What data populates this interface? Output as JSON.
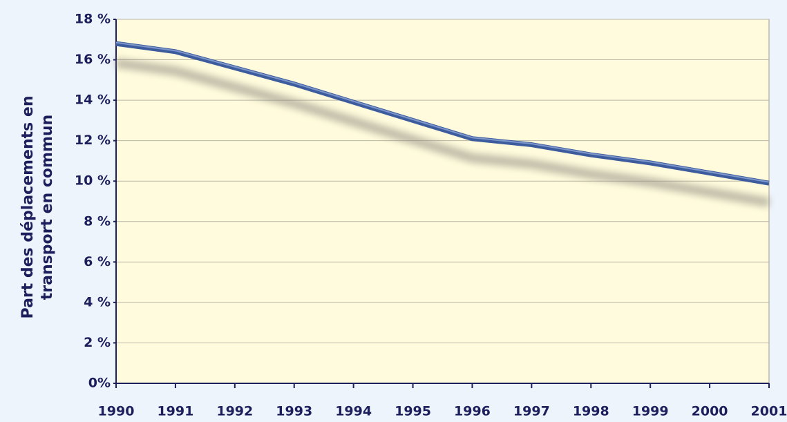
{
  "chart_data": {
    "type": "line",
    "ylabel": [
      "Part des déplacements en",
      "transport en commun"
    ],
    "x": [
      1990,
      1991,
      1992,
      1993,
      1994,
      1995,
      1996,
      1997,
      1998,
      1999,
      2000,
      2001
    ],
    "series": [
      {
        "name": "Part des déplacements en transport en commun",
        "color": "#3d5c9e",
        "values": [
          16.8,
          16.4,
          15.6,
          14.8,
          13.9,
          13.0,
          12.1,
          11.8,
          11.3,
          10.9,
          10.4,
          9.9
        ]
      }
    ],
    "xlim": [
      1990,
      2001
    ],
    "xticks": [
      1990,
      1991,
      1992,
      1993,
      1994,
      1995,
      1996,
      1997,
      1998,
      1999,
      2000,
      2001
    ],
    "ylim": [
      0,
      18
    ],
    "yticks": [
      {
        "value": 0,
        "label": "0%"
      },
      {
        "value": 2,
        "label": "2 %"
      },
      {
        "value": 4,
        "label": "4 %"
      },
      {
        "value": 6,
        "label": "6 %"
      },
      {
        "value": 8,
        "label": "8 %"
      },
      {
        "value": 10,
        "label": "10 %"
      },
      {
        "value": 12,
        "label": "12 %"
      },
      {
        "value": 14,
        "label": "14 %"
      },
      {
        "value": 16,
        "label": "16 %"
      },
      {
        "value": 18,
        "label": "18 %"
      }
    ],
    "grid": true
  }
}
